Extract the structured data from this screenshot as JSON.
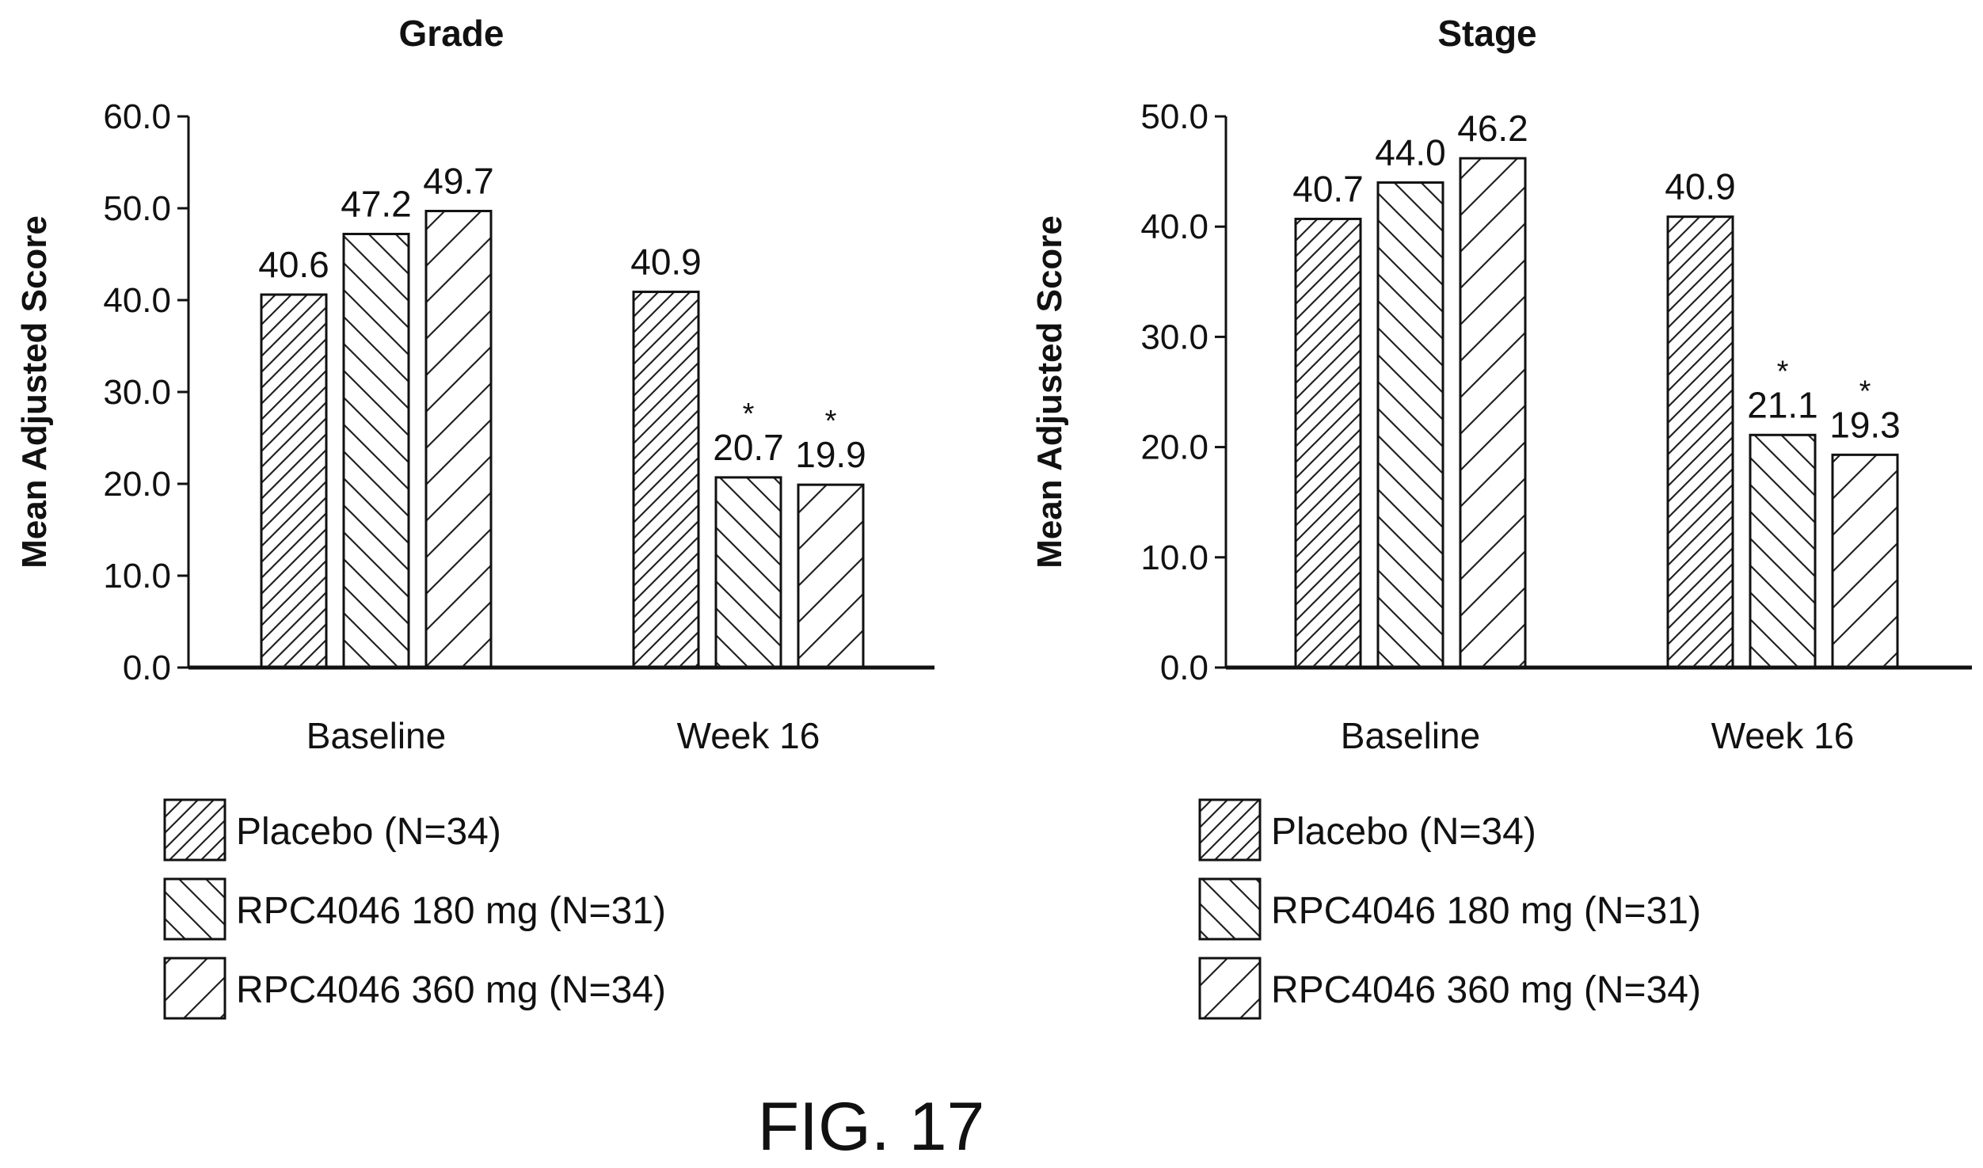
{
  "caption": "FIG. 17",
  "legend": [
    {
      "label": "Placebo (N=34)",
      "pattern": "dense-diagonal"
    },
    {
      "label": "RPC4046 180 mg (N=31)",
      "pattern": "back-diagonal"
    },
    {
      "label": "RPC4046 360 mg (N=34)",
      "pattern": "sparse-diagonal"
    }
  ],
  "chart_data": [
    {
      "type": "bar",
      "title": "Grade",
      "xlabel": "",
      "ylabel": "Mean Adjusted Score",
      "ylim": [
        0,
        60
      ],
      "yticks": [
        "0.0",
        "10.0",
        "20.0",
        "30.0",
        "40.0",
        "50.0",
        "60.0"
      ],
      "categories": [
        "Baseline",
        "Week 16"
      ],
      "series": [
        {
          "name": "Placebo (N=34)",
          "values": [
            40.6,
            40.9
          ],
          "labels": [
            "40.6",
            "40.9"
          ],
          "stars": [
            false,
            false
          ]
        },
        {
          "name": "RPC4046 180 mg (N=31)",
          "values": [
            47.2,
            20.7
          ],
          "labels": [
            "47.2",
            "20.7"
          ],
          "stars": [
            false,
            true
          ]
        },
        {
          "name": "RPC4046 360 mg (N=34)",
          "values": [
            49.7,
            19.9
          ],
          "labels": [
            "49.7",
            "19.9"
          ],
          "stars": [
            false,
            true
          ]
        }
      ],
      "star_symbol": "*",
      "grid": false
    },
    {
      "type": "bar",
      "title": "Stage",
      "xlabel": "",
      "ylabel": "Mean Adjusted Score",
      "ylim": [
        0,
        50
      ],
      "yticks": [
        "0.0",
        "10.0",
        "20.0",
        "30.0",
        "40.0",
        "50.0"
      ],
      "categories": [
        "Baseline",
        "Week 16"
      ],
      "series": [
        {
          "name": "Placebo (N=34)",
          "values": [
            40.7,
            40.9
          ],
          "labels": [
            "40.7",
            "40.9"
          ],
          "stars": [
            false,
            false
          ]
        },
        {
          "name": "RPC4046 180 mg (N=31)",
          "values": [
            44.0,
            21.1
          ],
          "labels": [
            "44.0",
            "21.1"
          ],
          "stars": [
            false,
            true
          ]
        },
        {
          "name": "RPC4046 360 mg (N=34)",
          "values": [
            46.2,
            19.3
          ],
          "labels": [
            "46.2",
            "19.3"
          ],
          "stars": [
            false,
            true
          ]
        }
      ],
      "star_symbol": "*",
      "grid": false
    }
  ]
}
